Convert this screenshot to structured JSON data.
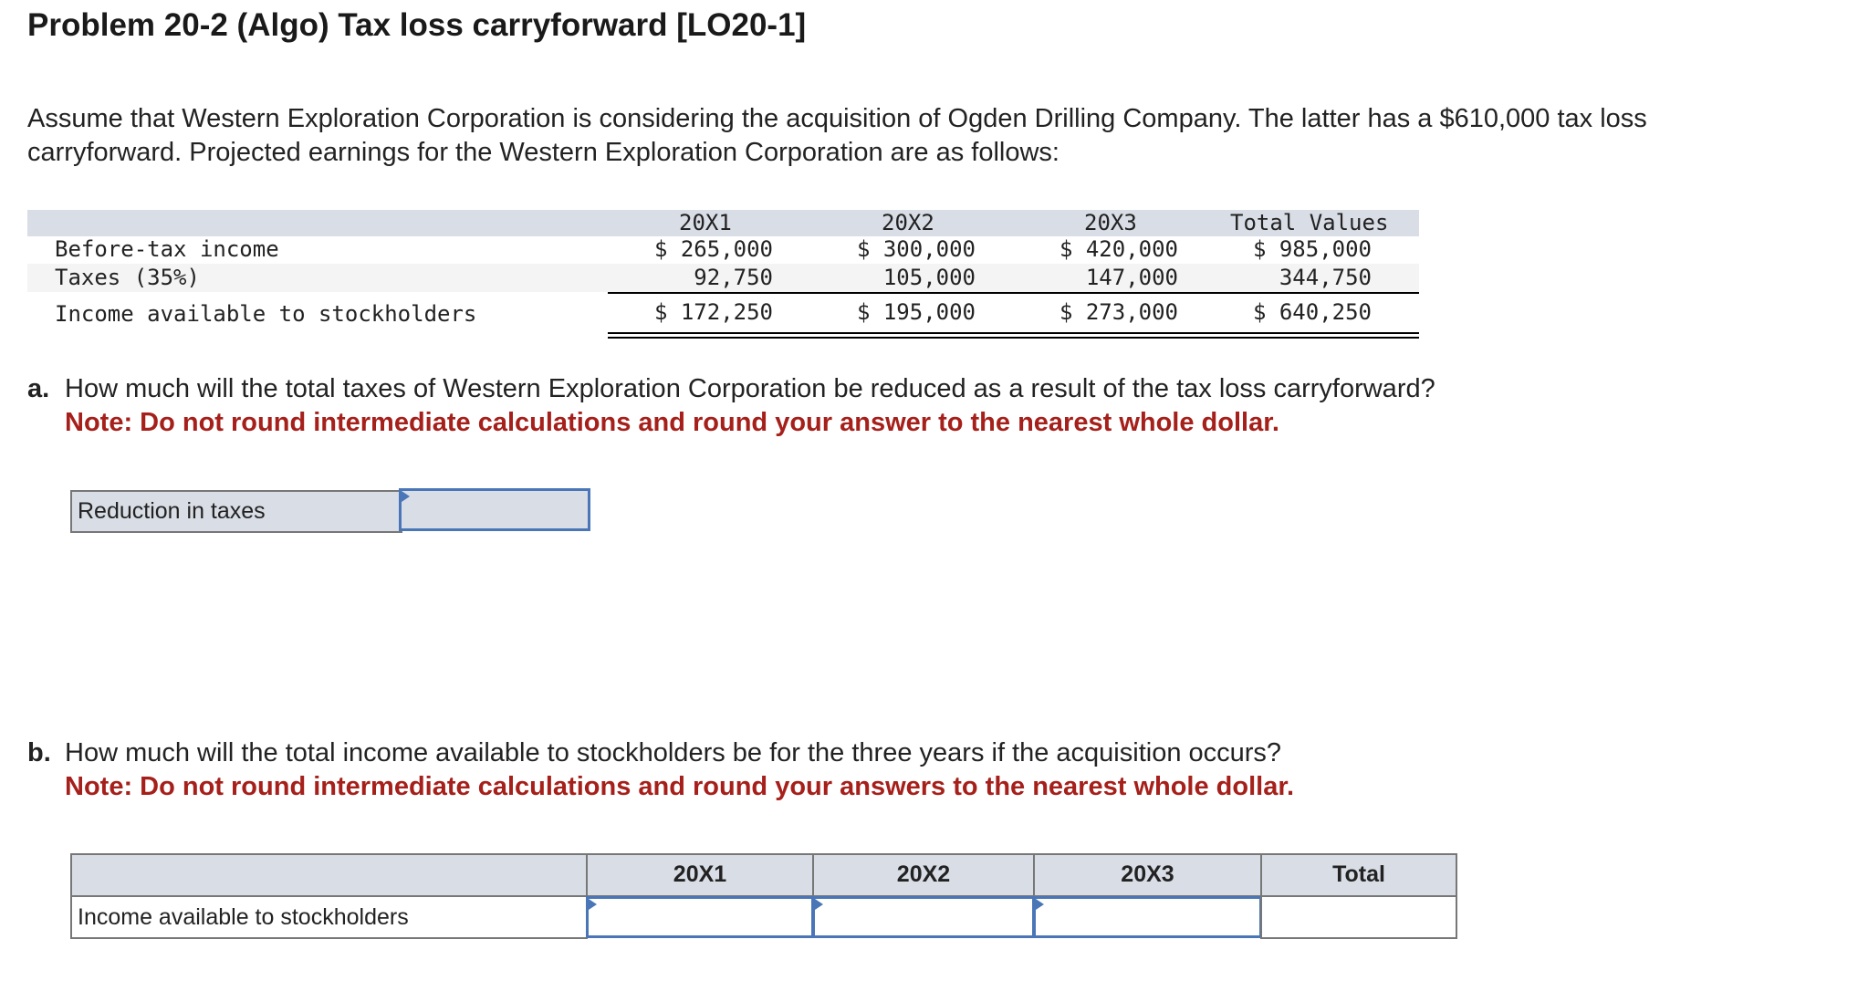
{
  "title": "Problem 20-2 (Algo) Tax loss carryforward [LO20-1]",
  "intro": "Assume that Western Exploration Corporation is considering the acquisition of Ogden Drilling Company. The latter has a $610,000 tax loss carryforward. Projected earnings for the Western Exploration Corporation are as follows:",
  "table": {
    "headers": [
      "20X1",
      "20X2",
      "20X3",
      "Total Values"
    ],
    "rows": [
      {
        "label": "Before-tax income",
        "values": [
          "$ 265,000",
          "$ 300,000",
          "$ 420,000",
          "$ 985,000"
        ]
      },
      {
        "label": "Taxes (35%)",
        "values": [
          "92,750",
          "105,000",
          "147,000",
          "344,750"
        ]
      },
      {
        "label": "Income available to stockholders",
        "values": [
          "$ 172,250",
          "$ 195,000",
          "$ 273,000",
          "$ 640,250"
        ]
      }
    ]
  },
  "question_a": {
    "label": "a.",
    "text": "How much will the total taxes of Western Exploration Corporation be reduced as a result of the tax loss carryforward?",
    "note": "Note: Do not round intermediate calculations and round your answer to the nearest whole dollar.",
    "row_label": "Reduction in taxes",
    "value": ""
  },
  "question_b": {
    "label": "b.",
    "text": "How much will the total income available to stockholders be for the three years if the acquisition occurs?",
    "note": "Note: Do not round intermediate calculations and round your answers to the nearest whole dollar.",
    "headers": [
      "20X1",
      "20X2",
      "20X3",
      "Total"
    ],
    "row_label": "Income available to stockholders",
    "values": [
      "",
      "",
      "",
      ""
    ]
  },
  "colors": {
    "header_bg": "#d9dde6",
    "note": "#a6201b",
    "input_border": "#4a76b8"
  }
}
